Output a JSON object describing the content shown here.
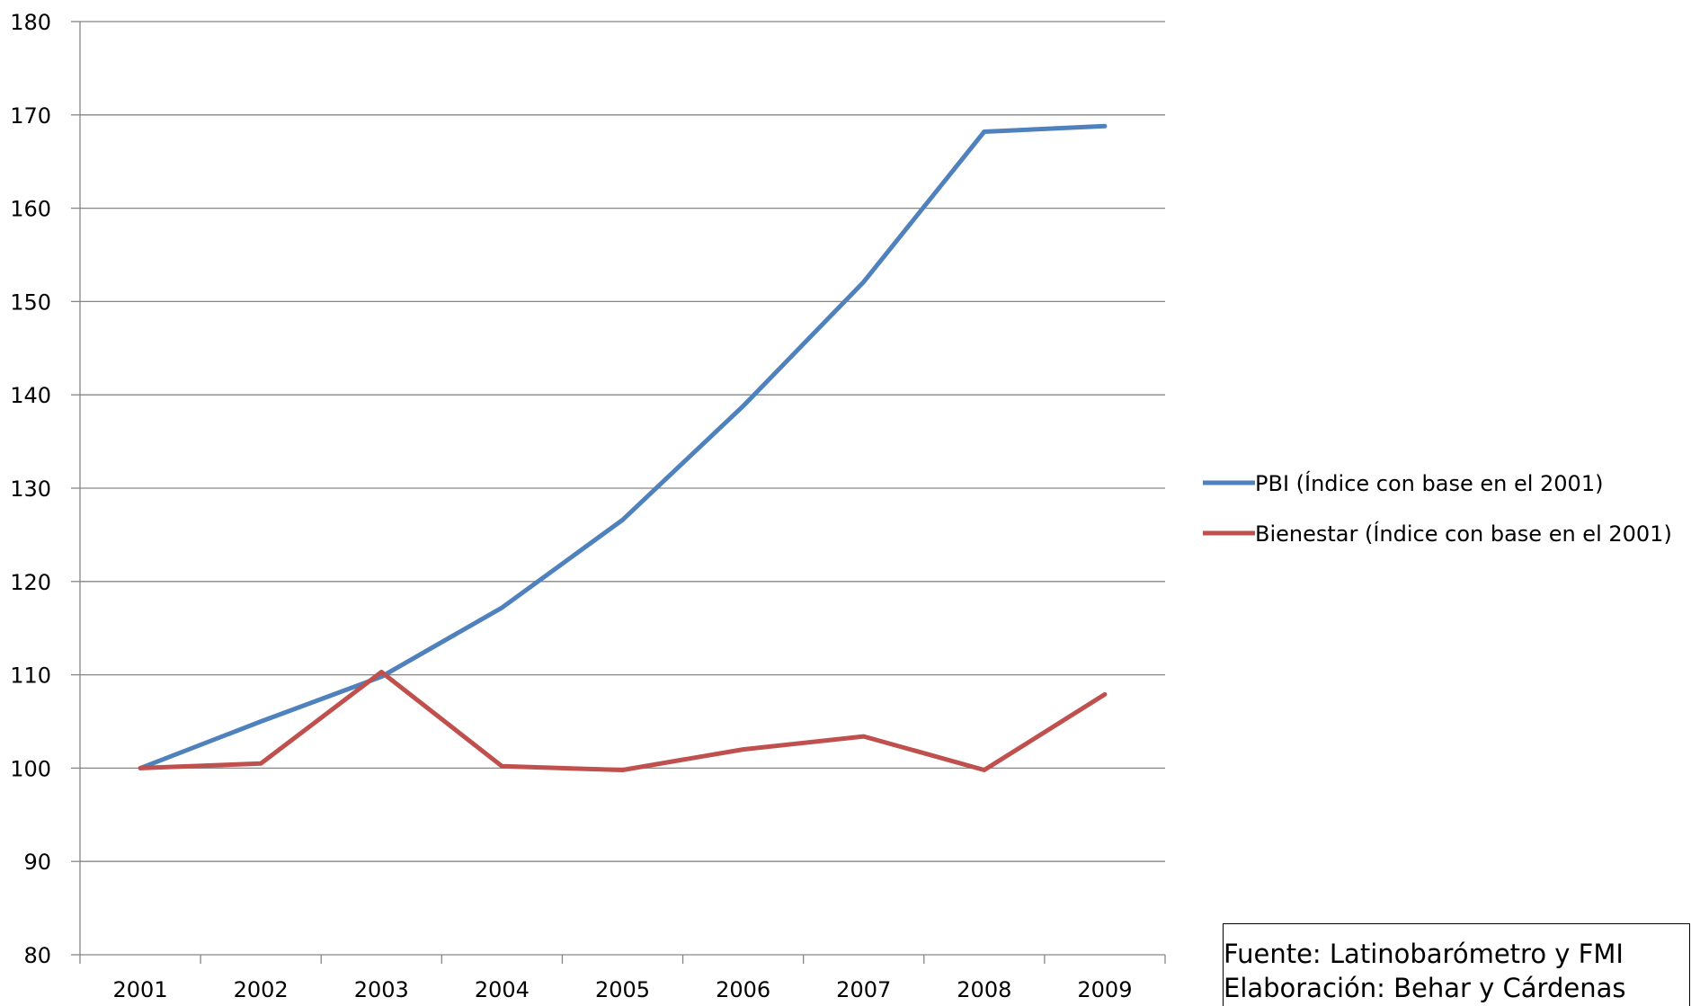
{
  "chart_data": {
    "type": "line",
    "title": "",
    "xlabel": "",
    "ylabel": "",
    "x": [
      "2001",
      "2002",
      "2003",
      "2004",
      "2005",
      "2006",
      "2007",
      "2008",
      "2009"
    ],
    "ylim": [
      80,
      180
    ],
    "yticks": [
      "80",
      "90",
      "100",
      "110",
      "120",
      "130",
      "140",
      "150",
      "160",
      "170",
      "180"
    ],
    "grid": "horizontal",
    "legend_position": "right",
    "series": [
      {
        "name": "PBI (Índice con base en el 2001)",
        "color": "#4F81BD",
        "values": [
          100,
          105,
          109.8,
          117.2,
          126.6,
          138.8,
          152.1,
          168.2,
          168.8
        ]
      },
      {
        "name": "Bienestar (Índice con base en el 2001)",
        "color": "#C0504D",
        "values": [
          100,
          100.5,
          110.3,
          100.2,
          99.8,
          102,
          103.4,
          99.8,
          107.9
        ]
      }
    ]
  },
  "source_note": {
    "line1": "Fuente: Latinobarómetro y FMI",
    "line2": "Elaboración: Behar y Cárdenas"
  }
}
